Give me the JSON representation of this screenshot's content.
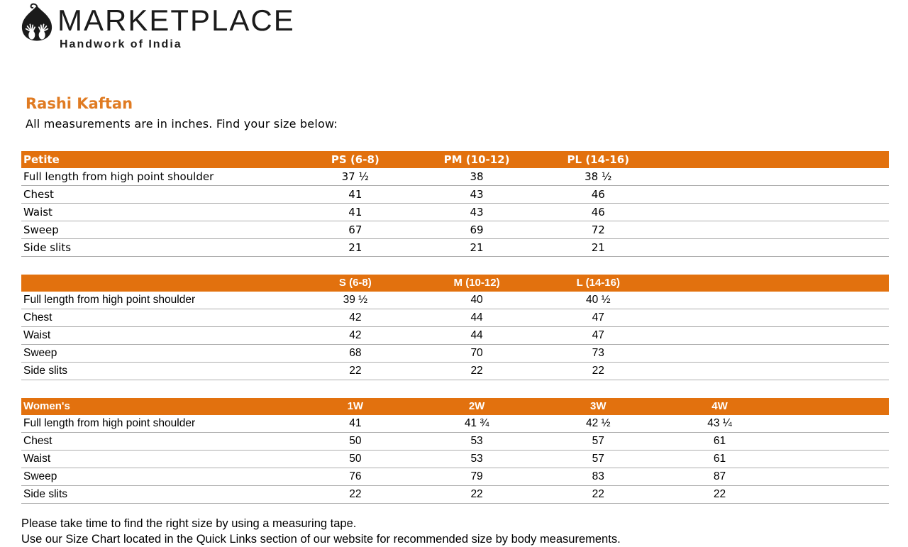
{
  "brand": {
    "icon": "leaf-hands-logo",
    "name": "MARKETPLACE",
    "tagline": "Handwork of India"
  },
  "page": {
    "title": "Rashi Kaftan",
    "subtitle": "All measurements are in inches. Find your size below:"
  },
  "colors": {
    "accent_orange": "#E2710E",
    "title_orange": "#E07B22",
    "header_text": "#FFFFFF",
    "row_separator": "#ADADAD",
    "logo_black": "#1B1B1B"
  },
  "tables": [
    {
      "name": "Petite",
      "columns": [
        "PS (6-8)",
        "PM (10-12)",
        "PL (14-16)"
      ],
      "rows": [
        {
          "label": "Full length from high point shoulder",
          "values": [
            "37 ½",
            "38",
            "38 ½"
          ]
        },
        {
          "label": "Chest",
          "values": [
            "41",
            "43",
            "46"
          ]
        },
        {
          "label": "Waist",
          "values": [
            "41",
            "43",
            "46"
          ]
        },
        {
          "label": "Sweep",
          "values": [
            "67",
            "69",
            "72"
          ]
        },
        {
          "label": "Side slits",
          "values": [
            "21",
            "21",
            "21"
          ]
        }
      ]
    },
    {
      "name": "",
      "columns": [
        "S (6-8)",
        "M (10-12)",
        "L (14-16)"
      ],
      "rows": [
        {
          "label": "Full length from high point shoulder",
          "values": [
            "39 ½",
            "40",
            "40 ½"
          ]
        },
        {
          "label": "Chest",
          "values": [
            "42",
            "44",
            "47"
          ]
        },
        {
          "label": "Waist",
          "values": [
            "42",
            "44",
            "47"
          ]
        },
        {
          "label": "Sweep",
          "values": [
            "68",
            "70",
            "73"
          ]
        },
        {
          "label": "Side slits",
          "values": [
            "22",
            "22",
            "22"
          ]
        }
      ]
    },
    {
      "name": "Women's",
      "columns": [
        "1W",
        "2W",
        "3W",
        "4W"
      ],
      "rows": [
        {
          "label": "Full length from high point shoulder",
          "values": [
            "41",
            "41 ¾",
            "42 ½",
            "43 ¼"
          ]
        },
        {
          "label": "Chest",
          "values": [
            "50",
            "53",
            "57",
            "61"
          ]
        },
        {
          "label": "Waist",
          "values": [
            "50",
            "53",
            "57",
            "61"
          ]
        },
        {
          "label": "Sweep",
          "values": [
            "76",
            "79",
            "83",
            "87"
          ]
        },
        {
          "label": "Side slits",
          "values": [
            "22",
            "22",
            "22",
            "22"
          ]
        }
      ]
    }
  ],
  "footer": {
    "line1": "Please take time to find the right size by using a measuring tape.",
    "line2": "Use our Size Chart located in the Quick Links section of our website for recommended size by body measurements."
  }
}
